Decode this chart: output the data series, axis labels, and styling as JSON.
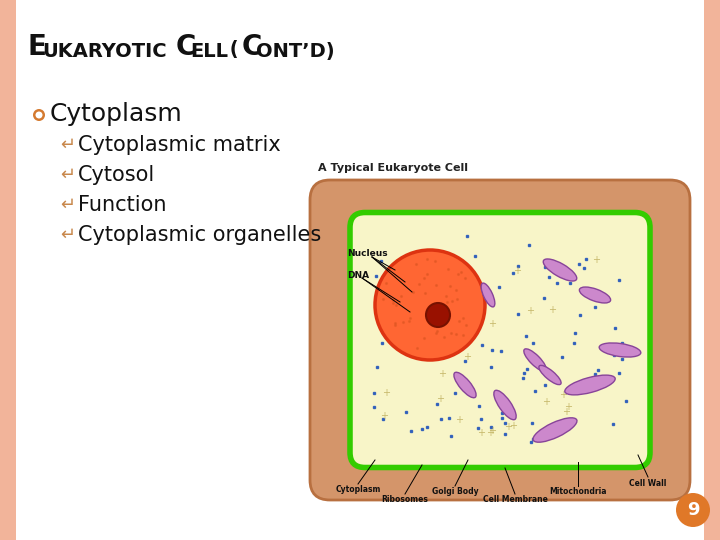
{
  "title_E": "E",
  "title_rest1": "UKARYOTIC ",
  "title_C": "C",
  "title_rest2": "ELL (",
  "title_C2": "C",
  "title_rest3": "ONT’D)",
  "background_color": "#ffffff",
  "left_border_color": "#f2b49a",
  "right_border_color": "#f2b49a",
  "bullet1": "Cytoplasm",
  "bullet1_color": "#d47a30",
  "sub_bullets": [
    "Cytoplasmic matrix",
    "Cytosol",
    "Function",
    "Cytoplasmic organelles"
  ],
  "sub_bullet_color": "#c8884c",
  "page_number": "9",
  "page_number_bg": "#e07828",
  "page_number_color": "#ffffff",
  "image_title": "A Typical Eukaryote Cell",
  "cell_outer_color": "#d4956a",
  "cell_inner_color": "#f5f0c0",
  "cell_membrane_color": "#44cc00",
  "nucleus_color": "#ff6633",
  "nucleolus_color": "#991100",
  "organelle_fill": "#cc88cc",
  "organelle_edge": "#884499",
  "ribosome_color": "#2255bb",
  "label_color": "#111111",
  "title_fontsize_large": 20,
  "title_fontsize_small": 14,
  "bullet_fontsize": 18,
  "sub_fontsize": 15
}
